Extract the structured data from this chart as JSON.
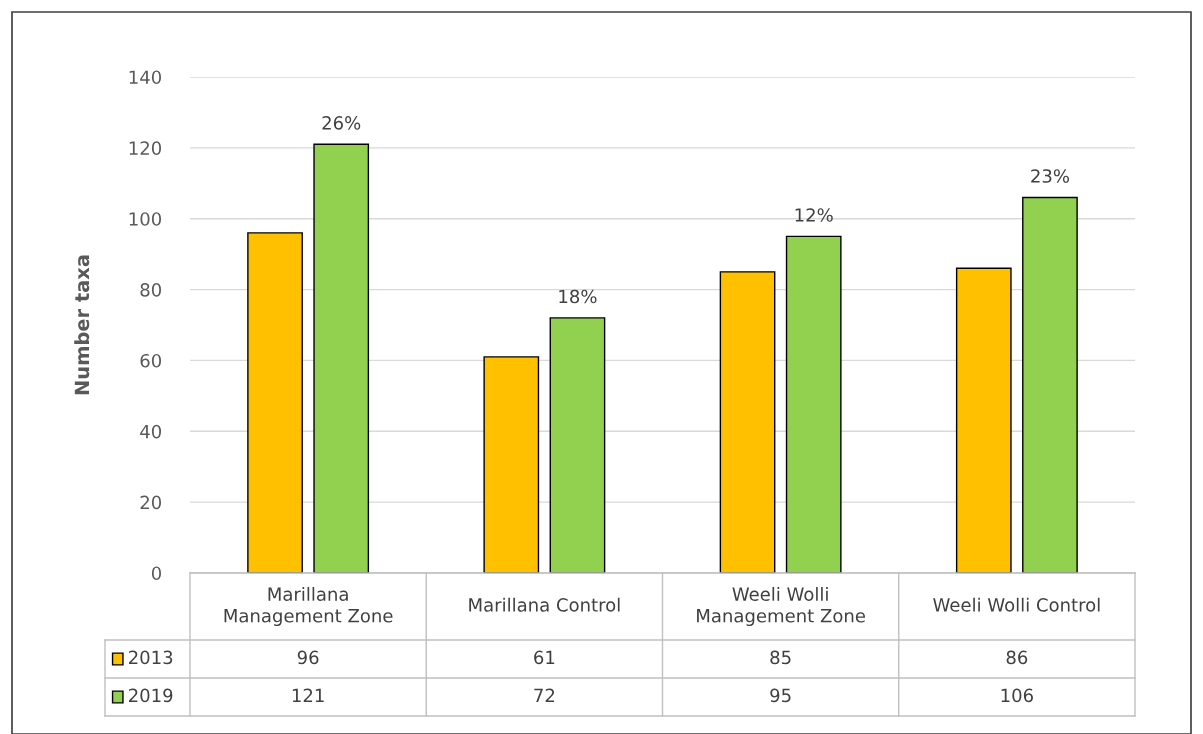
{
  "chart_data": {
    "type": "bar",
    "ylabel": "Number taxa",
    "categories": [
      "Marillana\nManagement Zone",
      "Marillana Control",
      "Weeli Wolli\nManagement Zone",
      "Weeli Wolli Control"
    ],
    "series": [
      {
        "name": "2013",
        "color": "#ffc000",
        "values": [
          96,
          61,
          85,
          86
        ]
      },
      {
        "name": "2019",
        "color": "#92d050",
        "values": [
          121,
          72,
          95,
          106
        ]
      }
    ],
    "ylim": [
      0,
      140
    ],
    "yticks": [
      0,
      20,
      40,
      60,
      80,
      100,
      120,
      140
    ],
    "grid": "y",
    "data_labels": true,
    "legend": "bottom",
    "annotations": [
      "26%",
      "18%",
      "12%",
      "23%"
    ]
  }
}
